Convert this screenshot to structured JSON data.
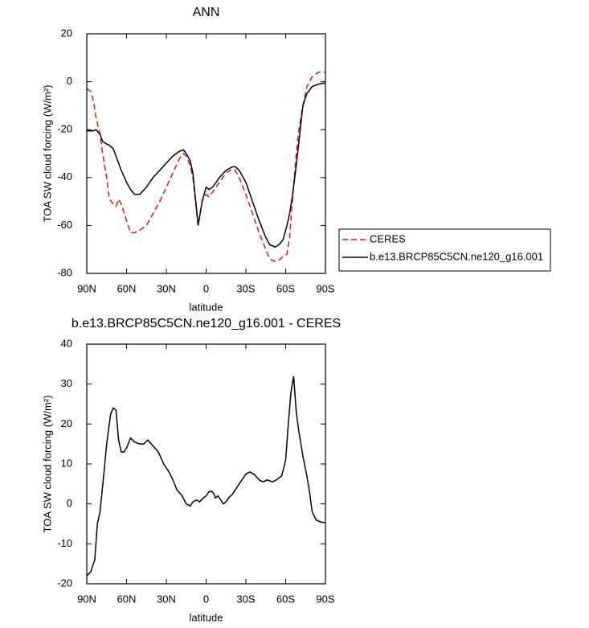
{
  "chart_data": [
    {
      "type": "line",
      "title": "ANN",
      "x_label": "latitude",
      "y_label": "TOA SW cloud forcing (W/m²)",
      "x": [
        90,
        87,
        85,
        83,
        80,
        78,
        75,
        73,
        70,
        68,
        66,
        64,
        60,
        57,
        54,
        50,
        45,
        40,
        35,
        30,
        25,
        20,
        17,
        15,
        12,
        10,
        6,
        3,
        0,
        -2,
        -5,
        -10,
        -15,
        -20,
        -22,
        -25,
        -30,
        -35,
        -40,
        -45,
        -48,
        -52,
        -55,
        -58,
        -61,
        -63,
        -65,
        -68,
        -70,
        -73,
        -76,
        -80,
        -85,
        -90
      ],
      "series": [
        {
          "name": "CERES",
          "color": "#e8151b",
          "dashed": true,
          "values": [
            -3,
            -4,
            -8,
            -15,
            -22,
            -30,
            -40,
            -49,
            -51,
            -52,
            -49,
            -51,
            -58,
            -63,
            -63,
            -62,
            -60,
            -55,
            -50,
            -44,
            -38,
            -32,
            -30,
            -31,
            -35,
            -40,
            -60,
            -50,
            -47,
            -48,
            -46,
            -42,
            -38,
            -36.5,
            -37,
            -40,
            -47,
            -55,
            -63,
            -70,
            -74,
            -75,
            -74.5,
            -73,
            -72,
            -65,
            -50,
            -30,
            -20,
            -10,
            -2,
            2,
            4,
            4
          ]
        },
        {
          "name": "b.e13.BRCP85C5CN.ne120_g16.001",
          "color": "#000000",
          "dashed": false,
          "values": [
            -20.5,
            -20.5,
            -20.5,
            -20,
            -22,
            -25,
            -26,
            -26.5,
            -28,
            -31,
            -34,
            -37,
            -42,
            -45,
            -47,
            -47,
            -44,
            -40,
            -37,
            -34,
            -31,
            -29,
            -28.5,
            -30,
            -33,
            -38,
            -60,
            -50,
            -44,
            -45,
            -44,
            -40,
            -37,
            -35.5,
            -35.5,
            -37,
            -42,
            -50,
            -58,
            -65,
            -68,
            -69,
            -68,
            -66,
            -60,
            -55,
            -48,
            -35,
            -25,
            -10,
            -5,
            -2,
            -1,
            -0.5
          ]
        }
      ],
      "xlim": [
        90,
        -90
      ],
      "xticks": [
        {
          "value": 90,
          "label": "90N"
        },
        {
          "value": 60,
          "label": "60N"
        },
        {
          "value": 30,
          "label": "30N"
        },
        0,
        {
          "value": -30,
          "label": "30S"
        },
        {
          "value": -60,
          "label": "60S"
        },
        {
          "value": -90,
          "label": "90S"
        }
      ],
      "ylim": [
        -80,
        20
      ],
      "yticks": [
        -80,
        -60,
        -40,
        -20,
        0,
        20
      ],
      "legend": "right"
    },
    {
      "type": "line",
      "title": "b.e13.BRCP85C5CN.ne120_g16.001 - CERES",
      "x_label": "latitude",
      "y_label": "TOA SW cloud forcing (W/m²)",
      "x": [
        90,
        87,
        84,
        82,
        80,
        77,
        75,
        72,
        70,
        68,
        66,
        64,
        62,
        60,
        57,
        54,
        50,
        47,
        44,
        40,
        36,
        32,
        28,
        25,
        22,
        18,
        15,
        12,
        10,
        7,
        5,
        2,
        0,
        -2,
        -4,
        -6,
        -7,
        -9,
        -11,
        -13,
        -15,
        -17,
        -20,
        -25,
        -30,
        -33,
        -36,
        -40,
        -43,
        -46,
        -50,
        -53,
        -57,
        -60,
        -62,
        -64,
        -66,
        -68,
        -70,
        -73,
        -76,
        -78,
        -80,
        -83,
        -86,
        -90
      ],
      "series": [
        {
          "color": "#000000",
          "dashed": false,
          "values": [
            -18,
            -17,
            -14,
            -5,
            -2,
            8,
            15,
            22.5,
            24,
            23.5,
            16,
            13,
            13,
            14,
            16.5,
            15.5,
            15,
            15,
            16,
            14.5,
            13,
            10,
            8,
            6,
            3.5,
            2,
            0,
            -0.5,
            0.5,
            1,
            0.5,
            1.5,
            2,
            3,
            3.2,
            2.5,
            1.5,
            2,
            1,
            0,
            0.5,
            1.5,
            2.5,
            5,
            7.5,
            8,
            7.5,
            6,
            5.5,
            6,
            5.5,
            6,
            7,
            11,
            20,
            28,
            32,
            23,
            18,
            12,
            7,
            3,
            -2,
            -4,
            -4.5,
            -4.7
          ]
        }
      ],
      "xlim": [
        90,
        -90
      ],
      "xticks": [
        {
          "value": 90,
          "label": "90N"
        },
        {
          "value": 60,
          "label": "60N"
        },
        {
          "value": 30,
          "label": "30N"
        },
        0,
        {
          "value": -30,
          "label": "30S"
        },
        {
          "value": -60,
          "label": "60S"
        },
        {
          "value": -90,
          "label": "90S"
        }
      ],
      "ylim": [
        -20,
        40
      ],
      "yticks": [
        -20,
        -10,
        0,
        10,
        20,
        30,
        40
      ]
    }
  ]
}
